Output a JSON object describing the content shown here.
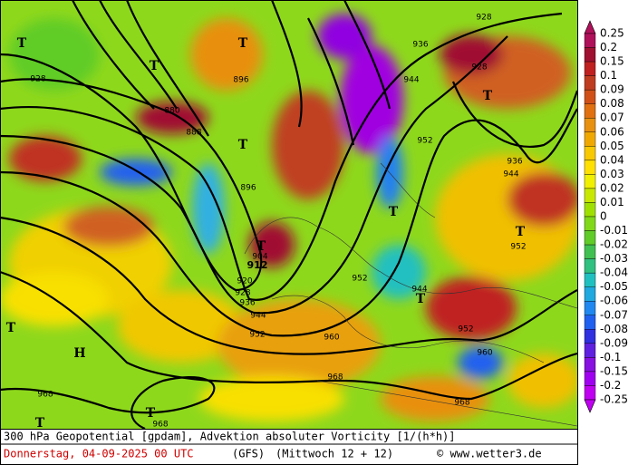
{
  "map": {
    "footer": {
      "title": "300 hPa Geopotential [gpdam], Advektion absoluter Vorticity [1/(h*h)]",
      "date": "Donnerstag, 04-09-2025  00 UTC",
      "model": "(GFS)",
      "run": "(Mittwoch 12 + 12)",
      "credit": "© www.wetter3.de"
    },
    "contour_labels": [
      "928",
      "880",
      "888",
      "896",
      "896",
      "904",
      "912",
      "920",
      "928",
      "936",
      "944",
      "952",
      "960",
      "968",
      "960",
      "968",
      "952",
      "944",
      "952",
      "952",
      "944",
      "936",
      "928",
      "928",
      "936",
      "944",
      "952",
      "968",
      "968"
    ],
    "markers": [
      "T",
      "T",
      "T",
      "T",
      "T",
      "T",
      "T",
      "T",
      "T",
      "T",
      "T",
      "T",
      "H"
    ],
    "colorbar": {
      "labels": [
        "0.25",
        "0.2",
        "0.15",
        "0.1",
        "0.09",
        "0.08",
        "0.07",
        "0.06",
        "0.05",
        "0.04",
        "0.03",
        "0.02",
        "0.01",
        "0",
        "-0.01",
        "-0.02",
        "-0.03",
        "-0.04",
        "-0.05",
        "-0.06",
        "-0.07",
        "-0.08",
        "-0.09",
        "-0.1",
        "-0.15",
        "-0.2",
        "-0.25"
      ],
      "colors": [
        "#b0105a",
        "#a01030",
        "#c02020",
        "#c03c20",
        "#d05018",
        "#e07010",
        "#e89010",
        "#f0a800",
        "#f8c800",
        "#ffe000",
        "#f0f000",
        "#c8e800",
        "#a0e000",
        "#80d818",
        "#60cc28",
        "#40c050",
        "#30c080",
        "#20c0c0",
        "#20a8e0",
        "#2088f0",
        "#2060f0",
        "#3030e0",
        "#6020e0",
        "#8810e0",
        "#a000f0",
        "#c000f0"
      ]
    }
  }
}
